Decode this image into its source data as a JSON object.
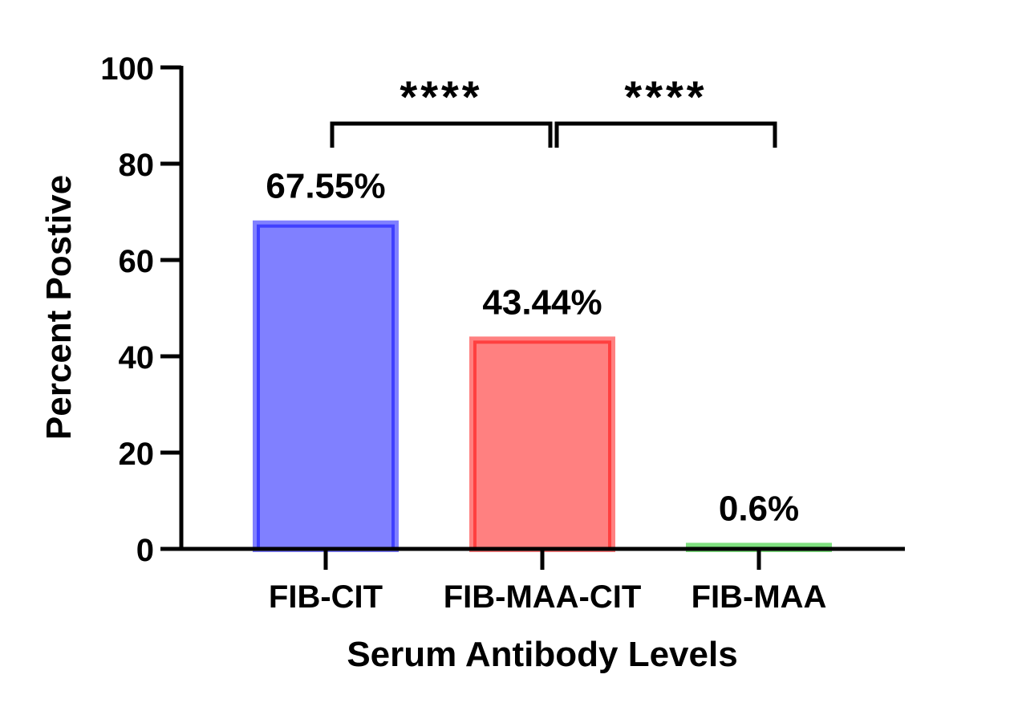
{
  "chart_data": {
    "type": "bar",
    "title": "",
    "xlabel": "Serum Antibody Levels",
    "ylabel": "Percent Postive",
    "ylim": [
      0,
      100
    ],
    "yticks": [
      0,
      20,
      40,
      60,
      80,
      100
    ],
    "grid": false,
    "categories": [
      "FIB-CIT",
      "FIB-MAA-CIT",
      "FIB-MAA"
    ],
    "values": [
      67.55,
      43.44,
      0.6
    ],
    "data_labels": [
      "67.55%",
      "43.44%",
      "0.6%"
    ],
    "colors": [
      {
        "fill": "#8080ff",
        "stroke": "#4040ff"
      },
      {
        "fill": "#ff8080",
        "stroke": "#ff4040"
      },
      {
        "fill": "#80e080",
        "stroke": "#40d040"
      }
    ],
    "significance": [
      {
        "from": 0,
        "to": 1,
        "label": "****"
      },
      {
        "from": 1,
        "to": 2,
        "label": "****"
      }
    ]
  }
}
